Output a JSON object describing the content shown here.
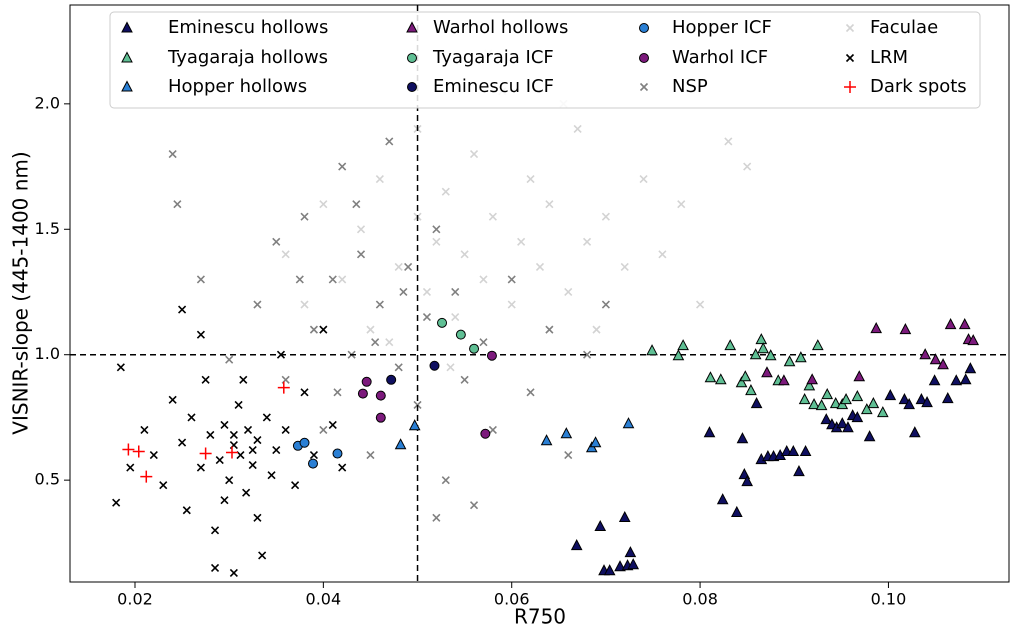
{
  "chart_data": {
    "type": "scatter",
    "xlabel": "R750",
    "ylabel": "VISNIR-slope (445-1400 nm)",
    "xlim": [
      0.0131,
      0.1128
    ],
    "ylim": [
      0.094,
      2.394
    ],
    "xticks": [
      0.02,
      0.04,
      0.06,
      0.08,
      {
        "value": 0.1,
        "label": "0.10"
      }
    ],
    "yticks": [
      0.5,
      {
        "value": 1,
        "label": "1.0"
      },
      1.5,
      {
        "value": 2,
        "label": "2.0"
      }
    ],
    "vline": 0.05,
    "hline": 1.0,
    "grid": false,
    "legend": "upper center",
    "series": [
      {
        "name": "Eminescu hollows",
        "marker": "triangle",
        "color": "#0f0f60",
        "x": [
          0.0669,
          0.0694,
          0.0698,
          0.0704,
          0.0715,
          0.072,
          0.0723,
          0.0726,
          0.0729,
          0.081,
          0.0824,
          0.0839,
          0.0845,
          0.0847,
          0.085,
          0.086,
          0.0865,
          0.0872,
          0.0878,
          0.0885,
          0.0892,
          0.0899,
          0.0905,
          0.0912,
          0.0934,
          0.094,
          0.0945,
          0.0951,
          0.0957,
          0.0962,
          0.0967,
          0.098,
          0.1002,
          0.1017,
          0.1022,
          0.1028,
          0.1035,
          0.1041,
          0.1049,
          0.1063,
          0.1072,
          0.1082,
          0.1087
        ],
        "y": [
          0.239,
          0.315,
          0.139,
          0.139,
          0.155,
          0.351,
          0.159,
          0.211,
          0.163,
          0.689,
          0.422,
          0.371,
          0.665,
          0.522,
          0.494,
          0.805,
          0.582,
          0.594,
          0.594,
          0.598,
          0.614,
          0.614,
          0.534,
          0.614,
          0.741,
          0.721,
          0.709,
          0.725,
          0.709,
          0.757,
          0.749,
          0.673,
          0.837,
          0.821,
          0.801,
          0.689,
          0.821,
          0.809,
          0.896,
          0.825,
          0.896,
          0.9,
          0.944
        ]
      },
      {
        "name": "Tyagaraja hollows",
        "marker": "triangle",
        "color": "#5fbf94",
        "x": [
          0.0749,
          0.0777,
          0.0782,
          0.0811,
          0.0822,
          0.0832,
          0.0844,
          0.0848,
          0.0854,
          0.0859,
          0.0865,
          0.0867,
          0.0875,
          0.0883,
          0.0895,
          0.0907,
          0.0911,
          0.0916,
          0.0921,
          0.0925,
          0.0929,
          0.0935,
          0.0944,
          0.0951,
          0.0955,
          0.0967,
          0.0977,
          0.0984,
          0.0994
        ],
        "y": [
          1.016,
          0.996,
          1.036,
          0.908,
          0.9,
          1.036,
          0.888,
          0.912,
          0.857,
          1.0,
          1.06,
          1.024,
          0.996,
          0.896,
          0.972,
          0.988,
          0.821,
          0.876,
          0.801,
          1.036,
          0.797,
          0.841,
          0.805,
          0.801,
          0.821,
          0.833,
          0.781,
          0.805,
          0.769
        ]
      },
      {
        "name": "Hopper hollows",
        "marker": "triangle",
        "color": "#2a7fd4",
        "x": [
          0.0482,
          0.0497,
          0.0637,
          0.0658,
          0.0685,
          0.0689,
          0.0724
        ],
        "y": [
          0.641,
          0.717,
          0.657,
          0.685,
          0.629,
          0.649,
          0.725
        ]
      },
      {
        "name": "Warhol hollows",
        "marker": "triangle",
        "color": "#7c1a7c",
        "x": [
          0.0871,
          0.0889,
          0.0919,
          0.0969,
          0.0987,
          0.1018,
          0.1039,
          0.105,
          0.1058,
          0.1066,
          0.1081,
          0.1085,
          0.109
        ],
        "y": [
          0.928,
          0.896,
          0.9,
          0.912,
          1.104,
          1.1,
          1.0,
          0.98,
          0.96,
          1.12,
          1.12,
          1.06,
          1.056
        ]
      },
      {
        "name": "Tyagaraja ICF",
        "marker": "circle",
        "color": "#5fbf94",
        "x": [
          0.0526,
          0.0546,
          0.056
        ],
        "y": [
          1.127,
          1.08,
          1.024
        ]
      },
      {
        "name": "Eminescu ICF",
        "marker": "circle",
        "color": "#0f0f60",
        "x": [
          0.0472,
          0.0518
        ],
        "y": [
          0.9,
          0.956
        ]
      },
      {
        "name": "Hopper ICF",
        "marker": "circle",
        "color": "#2a7fd4",
        "x": [
          0.0373,
          0.038,
          0.0389,
          0.0415
        ],
        "y": [
          0.637,
          0.649,
          0.566,
          0.606
        ]
      },
      {
        "name": "Warhol ICF",
        "marker": "circle",
        "color": "#7c1a7c",
        "x": [
          0.0446,
          0.0461,
          0.0461,
          0.0442,
          0.0579,
          0.0572
        ],
        "y": [
          0.892,
          0.837,
          0.749,
          0.845,
          0.996,
          0.685
        ]
      },
      {
        "name": "NSP",
        "marker": "x",
        "color": "#808080",
        "x": [
          0.024,
          0.0245,
          0.027,
          0.03,
          0.033,
          0.035,
          0.036,
          0.038,
          0.039,
          0.04,
          0.041,
          0.042,
          0.043,
          0.044,
          0.045,
          0.046,
          0.047,
          0.048,
          0.049,
          0.05,
          0.051,
          0.052,
          0.053,
          0.054,
          0.055,
          0.056,
          0.057,
          0.058,
          0.06,
          0.062,
          0.064,
          0.066,
          0.068,
          0.07,
          0.052,
          0.0435,
          0.0455,
          0.0485,
          0.0415,
          0.0375
        ],
        "y": [
          1.8,
          1.6,
          1.3,
          0.98,
          1.2,
          1.45,
          0.9,
          1.55,
          1.1,
          0.7,
          1.3,
          1.75,
          1.0,
          1.4,
          0.6,
          1.2,
          1.85,
          0.95,
          1.35,
          0.8,
          1.15,
          1.5,
          0.5,
          1.25,
          0.9,
          0.4,
          1.05,
          0.7,
          1.3,
          0.85,
          1.1,
          0.6,
          1.0,
          1.2,
          0.35,
          1.6,
          1.05,
          1.25,
          0.85,
          1.3
        ]
      },
      {
        "name": "Faculae",
        "marker": "x",
        "color": "#d3d3d3",
        "x": [
          0.036,
          0.038,
          0.04,
          0.042,
          0.044,
          0.045,
          0.046,
          0.048,
          0.05,
          0.05,
          0.051,
          0.052,
          0.053,
          0.054,
          0.055,
          0.056,
          0.057,
          0.058,
          0.059,
          0.06,
          0.061,
          0.062,
          0.063,
          0.064,
          0.066,
          0.067,
          0.068,
          0.07,
          0.072,
          0.074,
          0.076,
          0.078,
          0.08,
          0.083,
          0.085,
          0.0655,
          0.0575,
          0.047,
          0.0535,
          0.069
        ],
        "y": [
          1.4,
          1.2,
          1.6,
          1.3,
          1.5,
          1.1,
          1.7,
          1.35,
          1.55,
          1.9,
          1.25,
          1.45,
          1.65,
          1.15,
          1.4,
          1.8,
          1.3,
          1.55,
          2.05,
          1.2,
          1.45,
          1.7,
          1.35,
          1.6,
          1.25,
          1.9,
          1.45,
          1.55,
          1.35,
          1.7,
          1.4,
          1.6,
          1.2,
          1.85,
          1.75,
          2.0,
          2.2,
          1.05,
          0.95,
          1.1
        ]
      },
      {
        "name": "LRM",
        "marker": "x",
        "color": "#000000",
        "x": [
          0.018,
          0.0185,
          0.0195,
          0.021,
          0.022,
          0.023,
          0.024,
          0.025,
          0.0255,
          0.026,
          0.027,
          0.0275,
          0.028,
          0.0285,
          0.029,
          0.0295,
          0.03,
          0.0305,
          0.031,
          0.0312,
          0.0318,
          0.032,
          0.0325,
          0.033,
          0.0335,
          0.034,
          0.0345,
          0.035,
          0.0355,
          0.036,
          0.037,
          0.038,
          0.039,
          0.04,
          0.041,
          0.042,
          0.0285,
          0.0305,
          0.025,
          0.027,
          0.033,
          0.0315,
          0.0295,
          0.0325,
          0.0305
        ],
        "y": [
          0.41,
          0.95,
          0.55,
          0.7,
          0.6,
          0.48,
          0.82,
          0.65,
          0.38,
          0.75,
          0.55,
          0.9,
          0.68,
          0.3,
          0.58,
          0.72,
          0.5,
          0.64,
          0.8,
          0.6,
          0.45,
          0.7,
          0.56,
          0.66,
          0.2,
          0.75,
          0.52,
          0.62,
          1.0,
          0.7,
          0.48,
          0.85,
          0.6,
          1.1,
          0.72,
          0.55,
          0.15,
          0.13,
          1.18,
          1.08,
          0.35,
          0.9,
          0.42,
          0.62,
          0.68
        ]
      },
      {
        "name": "Dark spots",
        "marker": "plus",
        "color": "#ff0000",
        "x": [
          0.0193,
          0.0204,
          0.0212,
          0.0275,
          0.0303,
          0.0358
        ],
        "y": [
          0.622,
          0.614,
          0.514,
          0.606,
          0.61,
          0.869
        ]
      }
    ]
  }
}
